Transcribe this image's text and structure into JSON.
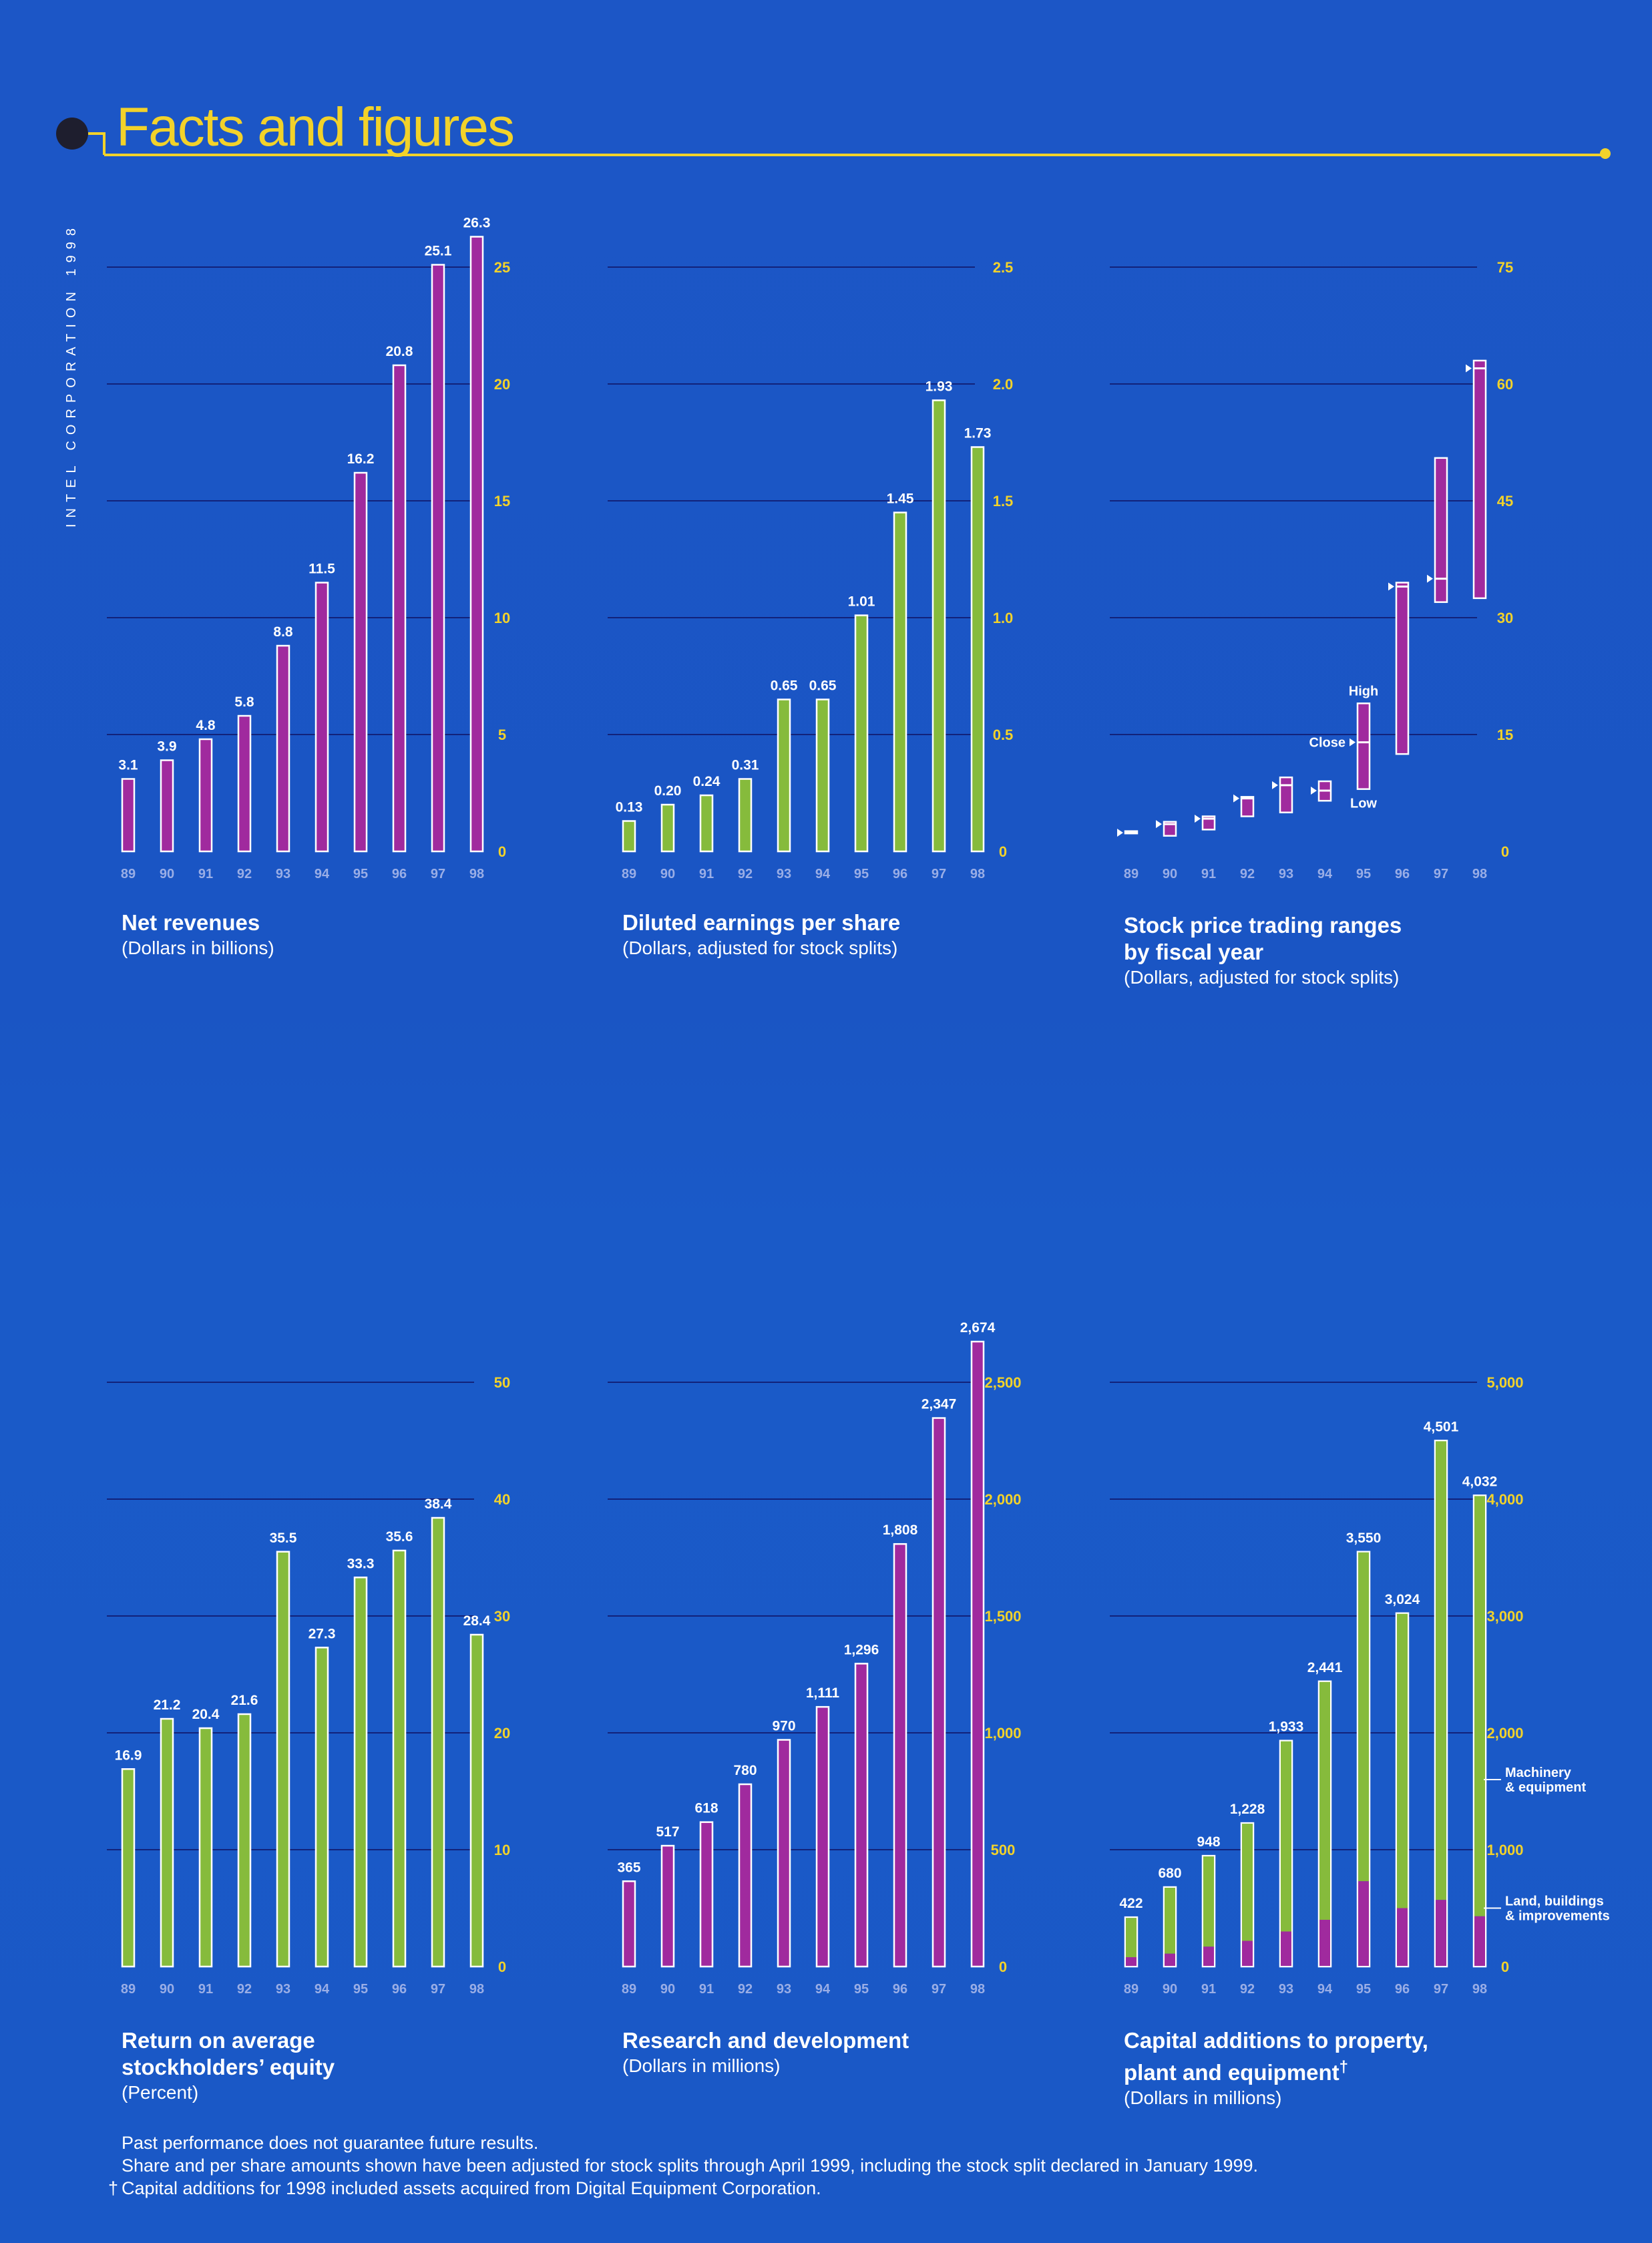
{
  "side_label": "INTEL CORPORATION 1998",
  "page_title": "Facts and figures",
  "colors": {
    "magenta": "#a02a9e",
    "green": "#86bb3c",
    "axis_tick": "#f2d22a",
    "year_label": "#9aaee6",
    "grid": "#12227a"
  },
  "chart_data": [
    {
      "type": "bar",
      "title": "Net revenues",
      "subtitle": "(Dollars in billions)",
      "categories": [
        "89",
        "90",
        "91",
        "92",
        "93",
        "94",
        "95",
        "96",
        "97",
        "98"
      ],
      "values": [
        3.1,
        3.9,
        4.8,
        5.8,
        8.8,
        11.5,
        16.2,
        20.8,
        25.1,
        26.3
      ],
      "labels": [
        "3.1",
        "3.9",
        "4.8",
        "5.8",
        "8.8",
        "11.5",
        "16.2",
        "20.8",
        "25.1",
        "26.3"
      ],
      "color": "magenta",
      "ylim": [
        0,
        25
      ],
      "yticks": [
        0,
        5,
        10,
        15,
        20,
        25
      ],
      "ytick_labels": [
        "0",
        "5",
        "10",
        "15",
        "20",
        "25"
      ],
      "grid": true
    },
    {
      "type": "bar",
      "title": "Diluted earnings per share",
      "subtitle": "(Dollars, adjusted for stock splits)",
      "categories": [
        "89",
        "90",
        "91",
        "92",
        "93",
        "94",
        "95",
        "96",
        "97",
        "98"
      ],
      "values": [
        0.13,
        0.2,
        0.24,
        0.31,
        0.65,
        0.65,
        1.01,
        1.45,
        1.93,
        1.73
      ],
      "labels": [
        "0.13",
        "0.20",
        "0.24",
        "0.31",
        "0.65",
        "0.65",
        "1.01",
        "1.45",
        "1.93",
        "1.73"
      ],
      "color": "green",
      "ylim": [
        0,
        2.5
      ],
      "yticks": [
        0,
        0.5,
        1.0,
        1.5,
        2.0,
        2.5
      ],
      "ytick_labels": [
        "0",
        "0.5",
        "1.0",
        "1.5",
        "2.0",
        "2.5"
      ],
      "grid": true
    },
    {
      "type": "range",
      "title": "Stock price trading ranges\nby fiscal year",
      "subtitle": "(Dollars, adjusted for stock splits)",
      "categories": [
        "89",
        "90",
        "91",
        "92",
        "93",
        "94",
        "95",
        "96",
        "97",
        "98"
      ],
      "low": [
        2.3,
        2.0,
        2.8,
        4.5,
        5.0,
        6.5,
        8.0,
        12.5,
        32.0,
        32.5
      ],
      "high": [
        2.6,
        3.8,
        4.5,
        7.0,
        9.5,
        9.0,
        19.0,
        34.5,
        50.5,
        63.0
      ],
      "close": [
        2.4,
        3.5,
        4.2,
        6.8,
        8.5,
        7.8,
        14.0,
        34.0,
        35.0,
        62.0
      ],
      "annotations": [
        "High",
        "Close",
        "Low"
      ],
      "color": "magenta",
      "ylim": [
        0,
        75
      ],
      "yticks": [
        0,
        15,
        30,
        45,
        60,
        75
      ],
      "ytick_labels": [
        "0",
        "15",
        "30",
        "45",
        "60",
        "75"
      ],
      "grid": true
    },
    {
      "type": "bar",
      "title": "Return on average\nstockholders’ equity",
      "subtitle": "(Percent)",
      "categories": [
        "89",
        "90",
        "91",
        "92",
        "93",
        "94",
        "95",
        "96",
        "97",
        "98"
      ],
      "values": [
        16.9,
        21.2,
        20.4,
        21.6,
        35.5,
        27.3,
        33.3,
        35.6,
        38.4,
        28.4
      ],
      "labels": [
        "16.9",
        "21.2",
        "20.4",
        "21.6",
        "35.5",
        "27.3",
        "33.3",
        "35.6",
        "38.4",
        "28.4"
      ],
      "color": "green",
      "ylim": [
        0,
        50
      ],
      "yticks": [
        0,
        10,
        20,
        30,
        40,
        50
      ],
      "ytick_labels": [
        "0",
        "10",
        "20",
        "30",
        "40",
        "50"
      ],
      "grid": true
    },
    {
      "type": "bar",
      "title": "Research and development",
      "subtitle": "(Dollars in millions)",
      "categories": [
        "89",
        "90",
        "91",
        "92",
        "93",
        "94",
        "95",
        "96",
        "97",
        "98"
      ],
      "values": [
        365,
        517,
        618,
        780,
        970,
        1111,
        1296,
        1808,
        2347,
        2674
      ],
      "labels": [
        "365",
        "517",
        "618",
        "780",
        "970",
        "1,111",
        "1,296",
        "1,808",
        "2,347",
        "2,674"
      ],
      "color": "magenta",
      "ylim": [
        0,
        2500
      ],
      "yticks": [
        0,
        500,
        1000,
        1500,
        2000,
        2500
      ],
      "ytick_labels": [
        "0",
        "500",
        "1,000",
        "1,500",
        "2,000",
        "2,500"
      ],
      "grid": true
    },
    {
      "type": "stacked_bar",
      "title": "Capital additions to property,\nplant and equipment",
      "title_mark": "†",
      "subtitle": "(Dollars in millions)",
      "categories": [
        "89",
        "90",
        "91",
        "92",
        "93",
        "94",
        "95",
        "96",
        "97",
        "98"
      ],
      "totals": [
        422,
        680,
        948,
        1228,
        1933,
        2441,
        3550,
        3024,
        4501,
        4032
      ],
      "labels": [
        "422",
        "680",
        "948",
        "1,228",
        "1,933",
        "2,441",
        "3,550",
        "3,024",
        "4,501",
        "4,032"
      ],
      "series": [
        {
          "name": "Land, buildings\n& improvements",
          "color": "magenta",
          "values": [
            80,
            110,
            170,
            220,
            300,
            400,
            730,
            500,
            570,
            430
          ]
        },
        {
          "name": "Machinery\n& equipment",
          "color": "green",
          "values": [
            342,
            570,
            778,
            1008,
            1633,
            2041,
            2820,
            2524,
            3931,
            3602
          ]
        }
      ],
      "ylim": [
        0,
        5000
      ],
      "yticks": [
        0,
        1000,
        2000,
        3000,
        4000,
        5000
      ],
      "ytick_labels": [
        "0",
        "1,000",
        "2,000",
        "3,000",
        "4,000",
        "5,000"
      ],
      "grid": true
    }
  ],
  "footnotes": {
    "line1": "Past performance does not guarantee future results.",
    "line2": "Share and per share amounts shown have been adjusted for stock splits through April 1999, including the stock split declared in January 1999.",
    "dagger": "†",
    "line3": "Capital additions for 1998 included assets acquired from Digital Equipment Corporation."
  }
}
